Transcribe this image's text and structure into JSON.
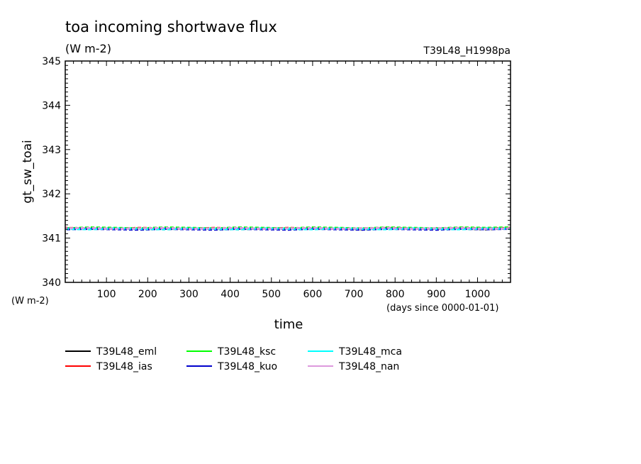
{
  "chart_data": {
    "type": "line",
    "title": "toa incoming shortwave flux",
    "units": "(W m-2)",
    "experiment": "T39L48_H1998pa",
    "ylabel": "gt_sw_toai",
    "y_units": "(W m-2)",
    "xlabel": "time",
    "x_units": "(days since 0000-01-01)",
    "xlim": [
      0,
      1080
    ],
    "ylim": [
      340,
      345
    ],
    "x_ticks": [
      "100",
      "200",
      "300",
      "400",
      "500",
      "600",
      "700",
      "800",
      "900",
      "1000"
    ],
    "x_tick_values": [
      100,
      200,
      300,
      400,
      500,
      600,
      700,
      800,
      900,
      1000
    ],
    "y_ticks": [
      "340",
      "341",
      "342",
      "343",
      "344",
      "345"
    ],
    "y_tick_values": [
      340,
      341,
      342,
      343,
      344,
      345
    ],
    "x": [
      0,
      60,
      120,
      180,
      240,
      300,
      360,
      420,
      480,
      540,
      600,
      660,
      720,
      780,
      840,
      900,
      960,
      1020,
      1080
    ],
    "legend_position": "bottom-left",
    "series": [
      {
        "name": "T39L48_eml",
        "color": "#000000",
        "values": [
          341.22,
          341.21,
          341.22,
          341.21,
          341.2,
          341.22,
          341.21,
          341.2,
          341.22,
          341.21,
          341.21,
          341.22,
          341.2,
          341.22,
          341.21,
          341.22,
          341.21,
          341.2,
          341.22
        ]
      },
      {
        "name": "T39L48_ias",
        "color": "#ff0000",
        "values": [
          341.23,
          341.22,
          341.21,
          341.23,
          341.22,
          341.21,
          341.23,
          341.22,
          341.21,
          341.23,
          341.22,
          341.21,
          341.22,
          341.23,
          341.22,
          341.21,
          341.23,
          341.22,
          341.23
        ]
      },
      {
        "name": "T39L48_ksc",
        "color": "#00ff00",
        "values": [
          341.22,
          341.24,
          341.23,
          341.22,
          341.24,
          341.23,
          341.22,
          341.24,
          341.23,
          341.22,
          341.24,
          341.23,
          341.22,
          341.24,
          341.23,
          341.22,
          341.24,
          341.23,
          341.24
        ]
      },
      {
        "name": "T39L48_kuo",
        "color": "#0000cc",
        "values": [
          341.2,
          341.21,
          341.2,
          341.19,
          341.21,
          341.2,
          341.19,
          341.21,
          341.2,
          341.19,
          341.21,
          341.2,
          341.19,
          341.21,
          341.2,
          341.19,
          341.21,
          341.2,
          341.21
        ]
      },
      {
        "name": "T39L48_mca",
        "color": "#00ffff",
        "values": [
          341.21,
          341.2,
          341.22,
          341.21,
          341.2,
          341.22,
          341.21,
          341.2,
          341.22,
          341.21,
          341.2,
          341.22,
          341.21,
          341.2,
          341.22,
          341.21,
          341.2,
          341.22,
          341.21
        ]
      },
      {
        "name": "T39L48_nan",
        "color": "#dd99dd",
        "values": [
          341.22,
          341.23,
          341.21,
          341.22,
          341.23,
          341.21,
          341.22,
          341.23,
          341.21,
          341.22,
          341.23,
          341.21,
          341.22,
          341.23,
          341.21,
          341.22,
          341.23,
          341.21,
          341.22
        ]
      }
    ]
  }
}
